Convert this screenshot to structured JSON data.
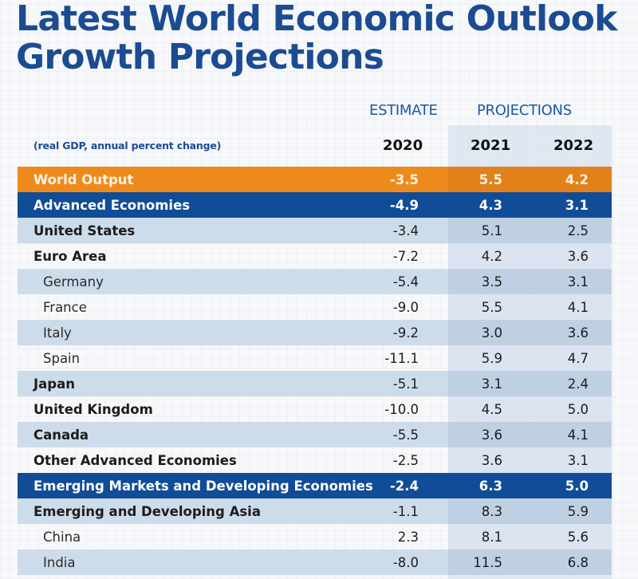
{
  "title": {
    "line1": "Latest World Economic Outlook",
    "line2": "Growth Projections"
  },
  "header": {
    "estimate_label": "ESTIMATE",
    "projections_label": "PROJECTIONS",
    "subtitle": "(real GDP, annual percent change)",
    "years": [
      "2020",
      "2021",
      "2022"
    ]
  },
  "colors": {
    "title_blue": "#1b4c92",
    "world_orange": "#ee8a1c",
    "group_blue": "#114c97",
    "row_shade": "#cddcea"
  },
  "rows": [
    {
      "label": "World Output",
      "type": "world",
      "values": [
        "-3.5",
        "5.5",
        "4.2"
      ]
    },
    {
      "label": "Advanced Economies",
      "type": "group",
      "values": [
        "-4.9",
        "4.3",
        "3.1"
      ]
    },
    {
      "label": "United States",
      "type": "country",
      "values": [
        "-3.4",
        "5.1",
        "2.5"
      ]
    },
    {
      "label": "Euro Area",
      "type": "country",
      "values": [
        "-7.2",
        "4.2",
        "3.6"
      ]
    },
    {
      "label": "Germany",
      "type": "sub",
      "values": [
        "-5.4",
        "3.5",
        "3.1"
      ]
    },
    {
      "label": "France",
      "type": "sub",
      "values": [
        "-9.0",
        "5.5",
        "4.1"
      ]
    },
    {
      "label": "Italy",
      "type": "sub",
      "values": [
        "-9.2",
        "3.0",
        "3.6"
      ]
    },
    {
      "label": "Spain",
      "type": "sub",
      "values": [
        "-11.1",
        "5.9",
        "4.7"
      ]
    },
    {
      "label": "Japan",
      "type": "country",
      "values": [
        "-5.1",
        "3.1",
        "2.4"
      ]
    },
    {
      "label": "United Kingdom",
      "type": "country",
      "values": [
        "-10.0",
        "4.5",
        "5.0"
      ]
    },
    {
      "label": "Canada",
      "type": "country",
      "values": [
        "-5.5",
        "3.6",
        "4.1"
      ]
    },
    {
      "label": "Other Advanced Economies",
      "type": "country",
      "values": [
        "-2.5",
        "3.6",
        "3.1"
      ]
    },
    {
      "label": "Emerging Markets and Developing Economies",
      "type": "group",
      "values": [
        "-2.4",
        "6.3",
        "5.0"
      ]
    },
    {
      "label": "Emerging and Developing Asia",
      "type": "country",
      "values": [
        "-1.1",
        "8.3",
        "5.9"
      ]
    },
    {
      "label": "China",
      "type": "sub",
      "values": [
        "2.3",
        "8.1",
        "5.6"
      ]
    },
    {
      "label": "India",
      "type": "sub",
      "values": [
        "-8.0",
        "11.5",
        "6.8"
      ]
    }
  ]
}
